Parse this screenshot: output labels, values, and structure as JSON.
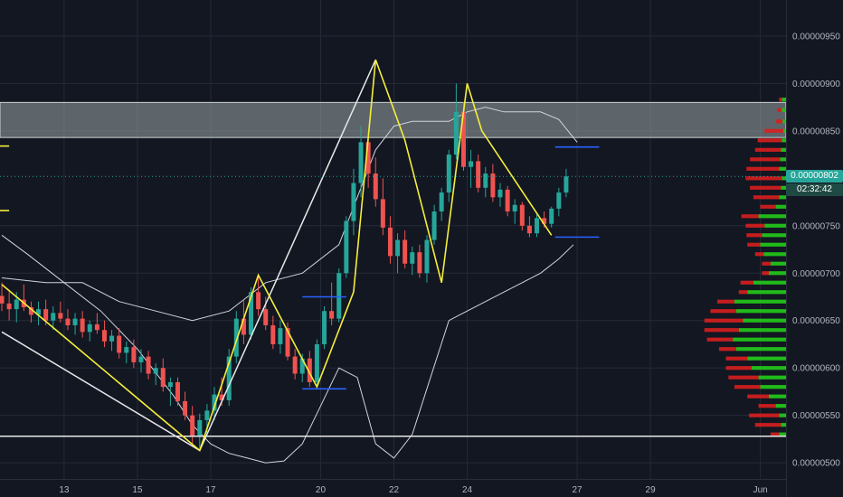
{
  "colors": {
    "background": "#131722",
    "grid": "#252a38",
    "axis_text": "#b2b5be",
    "candle_up": "#26a69a",
    "candle_down": "#ef5350",
    "yellow": "#f5ef3a",
    "white": "#e8e8e8",
    "band": "#d0d4dc",
    "zone": "#9ba6a6",
    "blue": "#2962ff",
    "last_price_tag": "#26a69a",
    "countdown_tag": "#1f4a44",
    "profile_up": "#22c31a",
    "profile_down": "#d91e1e"
  },
  "chart_data": {
    "type": "candlestick",
    "instrument_quote_unit": "price",
    "y_axis": {
      "ticks": [
        "0.00000950",
        "0.00000900",
        "0.00000850",
        "0.00000750",
        "0.00000700",
        "0.00000650",
        "0.00000600",
        "0.00000550",
        "0.00000500"
      ],
      "tick_values": [
        9.5e-06,
        9e-06,
        8.5e-06,
        7.5e-06,
        7e-06,
        6.5e-06,
        6e-06,
        5.5e-06,
        5e-06
      ],
      "range": [
        4.83e-06,
        9.88e-06
      ],
      "last_price_label": "0.00000802",
      "last_price": 8.02e-06,
      "countdown_label": "02:32:42"
    },
    "x_axis": {
      "ticks": [
        "13",
        "15",
        "17",
        "20",
        "22",
        "24",
        "27",
        "29",
        "Jun"
      ],
      "tick_days": [
        13,
        15,
        17,
        20,
        22,
        24,
        27,
        29,
        32
      ],
      "range_days": [
        11.25,
        32.7
      ]
    },
    "resistance_zone": [
      8.43e-06,
      8.8e-06
    ],
    "support_line": 5.28e-06,
    "candles": [
      [
        11.3,
        6.76e-06,
        6.9e-06,
        6.6e-06,
        6.68e-06
      ],
      [
        11.5,
        6.68e-06,
        6.8e-06,
        6.5e-06,
        6.62e-06
      ],
      [
        11.7,
        6.62e-06,
        6.8e-06,
        6.48e-06,
        6.72e-06
      ],
      [
        11.9,
        6.72e-06,
        6.88e-06,
        6.6e-06,
        6.64e-06
      ],
      [
        12.1,
        6.64e-06,
        6.7e-06,
        6.48e-06,
        6.56e-06
      ],
      [
        12.3,
        6.56e-06,
        6.7e-06,
        6.45e-06,
        6.62e-06
      ],
      [
        12.5,
        6.62e-06,
        6.72e-06,
        6.45e-06,
        6.5e-06
      ],
      [
        12.7,
        6.5e-06,
        6.65e-06,
        6.4e-06,
        6.58e-06
      ],
      [
        12.9,
        6.58e-06,
        6.7e-06,
        6.48e-06,
        6.52e-06
      ],
      [
        13.1,
        6.52e-06,
        6.62e-06,
        6.4e-06,
        6.45e-06
      ],
      [
        13.3,
        6.45e-06,
        6.58e-06,
        6.35e-06,
        6.52e-06
      ],
      [
        13.5,
        6.52e-06,
        6.6e-06,
        6.32e-06,
        6.38e-06
      ],
      [
        13.7,
        6.38e-06,
        6.5e-06,
        6.28e-06,
        6.46e-06
      ],
      [
        13.9,
        6.46e-06,
        6.58e-06,
        6.36e-06,
        6.4e-06
      ],
      [
        14.1,
        6.4e-06,
        6.5e-06,
        6.22e-06,
        6.28e-06
      ],
      [
        14.3,
        6.28e-06,
        6.4e-06,
        6.18e-06,
        6.34e-06
      ],
      [
        14.5,
        6.34e-06,
        6.42e-06,
        6.1e-06,
        6.16e-06
      ],
      [
        14.7,
        6.16e-06,
        6.28e-06,
        6.05e-06,
        6.22e-06
      ],
      [
        14.9,
        6.22e-06,
        6.3e-06,
        6e-06,
        6.06e-06
      ],
      [
        15.1,
        6.06e-06,
        6.2e-06,
        5.95e-06,
        6.12e-06
      ],
      [
        15.3,
        6.12e-06,
        6.18e-06,
        5.88e-06,
        5.94e-06
      ],
      [
        15.5,
        5.94e-06,
        6.05e-06,
        5.82e-06,
        6e-06
      ],
      [
        15.7,
        6e-06,
        6.1e-06,
        5.75e-06,
        5.8e-06
      ],
      [
        15.9,
        5.8e-06,
        5.9e-06,
        5.6e-06,
        5.85e-06
      ],
      [
        16.1,
        5.85e-06,
        5.9e-06,
        5.6e-06,
        5.65e-06
      ],
      [
        16.3,
        5.65e-06,
        5.75e-06,
        5.45e-06,
        5.5e-06
      ],
      [
        16.5,
        5.5e-06,
        5.6e-06,
        5.2e-06,
        5.28e-06
      ],
      [
        16.7,
        5.28e-06,
        5.52e-06,
        5.13e-06,
        5.45e-06
      ],
      [
        16.9,
        5.45e-06,
        5.62e-06,
        5.3e-06,
        5.55e-06
      ],
      [
        17.1,
        5.55e-06,
        5.8e-06,
        5.45e-06,
        5.72e-06
      ],
      [
        17.3,
        5.72e-06,
        5.9e-06,
        5.6e-06,
        5.66e-06
      ],
      [
        17.5,
        5.66e-06,
        6.2e-06,
        5.6e-06,
        6.12e-06
      ],
      [
        17.7,
        6.12e-06,
        6.6e-06,
        6.05e-06,
        6.52e-06
      ],
      [
        17.9,
        6.52e-06,
        6.72e-06,
        6.25e-06,
        6.35e-06
      ],
      [
        18.1,
        6.35e-06,
        6.85e-06,
        6.3e-06,
        6.8e-06
      ],
      [
        18.3,
        6.8e-06,
        6.98e-06,
        6.55e-06,
        6.62e-06
      ],
      [
        18.5,
        6.62e-06,
        6.75e-06,
        6.4e-06,
        6.45e-06
      ],
      [
        18.7,
        6.45e-06,
        6.55e-06,
        6.2e-06,
        6.25e-06
      ],
      [
        18.9,
        6.25e-06,
        6.5e-06,
        6.15e-06,
        6.42e-06
      ],
      [
        19.1,
        6.42e-06,
        6.48e-06,
        6.08e-06,
        6.12e-06
      ],
      [
        19.3,
        6.12e-06,
        6.2e-06,
        5.88e-06,
        5.94e-06
      ],
      [
        19.5,
        5.94e-06,
        6.15e-06,
        5.85e-06,
        6.1e-06
      ],
      [
        19.7,
        6.1e-06,
        6.18e-06,
        5.8e-06,
        5.85e-06
      ],
      [
        19.9,
        5.85e-06,
        6.3e-06,
        5.8e-06,
        6.25e-06
      ],
      [
        20.1,
        6.25e-06,
        6.65e-06,
        6.2e-06,
        6.6e-06
      ],
      [
        20.3,
        6.6e-06,
        6.9e-06,
        6.45e-06,
        6.52e-06
      ],
      [
        20.5,
        6.52e-06,
        7.05e-06,
        6.48e-06,
        7e-06
      ],
      [
        20.7,
        7e-06,
        7.6e-06,
        6.95e-06,
        7.55e-06
      ],
      [
        20.9,
        7.55e-06,
        8.1e-06,
        7.4e-06,
        7.95e-06
      ],
      [
        21.1,
        7.95e-06,
        8.55e-06,
        7.8e-06,
        8.38e-06
      ],
      [
        21.3,
        8.38e-06,
        8.5e-06,
        7.9e-06,
        8.05e-06
      ],
      [
        21.5,
        8.05e-06,
        8.22e-06,
        7.7e-06,
        7.78e-06
      ],
      [
        21.7,
        7.78e-06,
        8e-06,
        7.4e-06,
        7.48e-06
      ],
      [
        21.9,
        7.48e-06,
        7.6e-06,
        7.1e-06,
        7.18e-06
      ],
      [
        22.1,
        7.18e-06,
        7.42e-06,
        7e-06,
        7.35e-06
      ],
      [
        22.3,
        7.35e-06,
        7.45e-06,
        7.05e-06,
        7.1e-06
      ],
      [
        22.5,
        7.1e-06,
        7.28e-06,
        6.98e-06,
        7.22e-06
      ],
      [
        22.7,
        7.22e-06,
        7.3e-06,
        6.95e-06,
        7e-06
      ],
      [
        22.9,
        7e-06,
        7.4e-06,
        6.9e-06,
        7.35e-06
      ],
      [
        23.1,
        7.35e-06,
        7.72e-06,
        7.3e-06,
        7.65e-06
      ],
      [
        23.3,
        7.65e-06,
        7.9e-06,
        7.55e-06,
        7.85e-06
      ],
      [
        23.5,
        7.85e-06,
        8.3e-06,
        7.75e-06,
        8.25e-06
      ],
      [
        23.7,
        8.25e-06,
        9e-06,
        8.2e-06,
        8.7e-06
      ],
      [
        23.9,
        8.7e-06,
        8.8e-06,
        8.08e-06,
        8.12e-06
      ],
      [
        24.1,
        8.12e-06,
        8.3e-06,
        7.9e-06,
        8.18e-06
      ],
      [
        24.3,
        8.18e-06,
        8.25e-06,
        7.85e-06,
        7.9e-06
      ],
      [
        24.5,
        7.9e-06,
        8.12e-06,
        7.8e-06,
        8.05e-06
      ],
      [
        24.7,
        8.05e-06,
        8.15e-06,
        7.75e-06,
        7.8e-06
      ],
      [
        24.9,
        7.8e-06,
        7.95e-06,
        7.7e-06,
        7.88e-06
      ],
      [
        25.1,
        7.88e-06,
        7.92e-06,
        7.6e-06,
        7.65e-06
      ],
      [
        25.3,
        7.65e-06,
        7.78e-06,
        7.52e-06,
        7.72e-06
      ],
      [
        25.5,
        7.72e-06,
        7.75e-06,
        7.45e-06,
        7.5e-06
      ],
      [
        25.7,
        7.5e-06,
        7.6e-06,
        7.38e-06,
        7.42e-06
      ],
      [
        25.9,
        7.42e-06,
        7.62e-06,
        7.38e-06,
        7.58e-06
      ],
      [
        26.1,
        7.58e-06,
        7.65e-06,
        7.48e-06,
        7.52e-06
      ],
      [
        26.3,
        7.52e-06,
        7.7e-06,
        7.48e-06,
        7.68e-06
      ],
      [
        26.5,
        7.68e-06,
        7.9e-06,
        7.6e-06,
        7.85e-06
      ],
      [
        26.7,
        7.85e-06,
        8.1e-06,
        7.8e-06,
        8.02e-06
      ]
    ],
    "bollinger_upper": [
      [
        11.3,
        6.95e-06
      ],
      [
        12.5,
        6.9e-06
      ],
      [
        13.5,
        6.9e-06
      ],
      [
        14.5,
        6.7e-06
      ],
      [
        15.5,
        6.6e-06
      ],
      [
        16.5,
        6.5e-06
      ],
      [
        17.5,
        6.6e-06
      ],
      [
        18.5,
        6.9e-06
      ],
      [
        19.5,
        7e-06
      ],
      [
        20.5,
        7.3e-06
      ],
      [
        21.0,
        7.8e-06
      ],
      [
        21.5,
        8.3e-06
      ],
      [
        22.0,
        8.55e-06
      ],
      [
        22.5,
        8.6e-06
      ],
      [
        23.5,
        8.6e-06
      ],
      [
        24.0,
        8.7e-06
      ],
      [
        24.5,
        8.75e-06
      ],
      [
        25.0,
        8.7e-06
      ],
      [
        25.5,
        8.7e-06
      ],
      [
        26.0,
        8.7e-06
      ],
      [
        26.5,
        8.62e-06
      ],
      [
        27.0,
        8.38e-06
      ]
    ],
    "bollinger_lower": [
      [
        11.3,
        7.4e-06
      ],
      [
        12.0,
        7.2e-06
      ],
      [
        13.0,
        6.9e-06
      ],
      [
        14.0,
        6.6e-06
      ],
      [
        15.0,
        6.2e-06
      ],
      [
        16.0,
        5.7e-06
      ],
      [
        16.5,
        5.4e-06
      ],
      [
        17.0,
        5.2e-06
      ],
      [
        17.5,
        5.1e-06
      ],
      [
        18.0,
        5.05e-06
      ],
      [
        18.5,
        5e-06
      ],
      [
        19.0,
        5.02e-06
      ],
      [
        19.5,
        5.2e-06
      ],
      [
        20.0,
        5.6e-06
      ],
      [
        20.5,
        6e-06
      ],
      [
        21.0,
        5.9e-06
      ],
      [
        21.5,
        5.2e-06
      ],
      [
        22.0,
        5.05e-06
      ],
      [
        22.5,
        5.3e-06
      ],
      [
        23.0,
        5.9e-06
      ],
      [
        23.5,
        6.5e-06
      ],
      [
        24.0,
        6.6e-06
      ],
      [
        24.5,
        6.7e-06
      ],
      [
        25.0,
        6.8e-06
      ],
      [
        25.5,
        6.9e-06
      ],
      [
        26.0,
        7e-06
      ],
      [
        26.5,
        7.15e-06
      ],
      [
        26.9,
        7.3e-06
      ]
    ],
    "yellow_zigzag": [
      [
        11.3,
        6.88e-06
      ],
      [
        16.7,
        5.13e-06
      ],
      [
        18.3,
        6.98e-06
      ],
      [
        19.9,
        5.8e-06
      ],
      [
        20.9,
        6.8e-06
      ],
      [
        21.5,
        9.25e-06
      ],
      [
        22.3,
        8.4e-06
      ],
      [
        23.3,
        6.9e-06
      ],
      [
        24.0,
        9e-06
      ],
      [
        24.4,
        8.5e-06
      ],
      [
        26.3,
        7.4e-06
      ]
    ],
    "white_lines": [
      [
        [
          11.3,
          6.38e-06
        ],
        [
          16.7,
          5.13e-06
        ],
        [
          21.5,
          9.25e-06
        ]
      ]
    ],
    "blue_levels": [
      [
        19.5,
        20.7,
        6.75e-06
      ],
      [
        19.5,
        20.7,
        5.78e-06
      ],
      [
        26.4,
        27.6,
        8.33e-06
      ],
      [
        26.4,
        27.6,
        7.38e-06
      ]
    ],
    "left_markers": [
      [
        11.25,
        11.5,
        8.34e-06
      ],
      [
        11.25,
        11.5,
        7.66e-06
      ]
    ],
    "volume_profile": [
      [
        8.83e-06,
        0.05,
        0.03
      ],
      [
        8.72e-06,
        0.05,
        0.05
      ],
      [
        8.6e-06,
        0.04,
        0.08
      ],
      [
        8.5e-06,
        0.03,
        0.22
      ],
      [
        8.4e-06,
        0.05,
        0.28
      ],
      [
        8.3e-06,
        0.06,
        0.3
      ],
      [
        8.2e-06,
        0.07,
        0.35
      ],
      [
        8.1e-06,
        0.08,
        0.38
      ],
      [
        8e-06,
        0.05,
        0.42
      ],
      [
        7.9e-06,
        0.06,
        0.36
      ],
      [
        7.8e-06,
        0.08,
        0.3
      ],
      [
        7.7e-06,
        0.12,
        0.18
      ],
      [
        7.6e-06,
        0.32,
        0.2
      ],
      [
        7.5e-06,
        0.25,
        0.22
      ],
      [
        7.4e-06,
        0.28,
        0.18
      ],
      [
        7.3e-06,
        0.3,
        0.15
      ],
      [
        7.2e-06,
        0.26,
        0.1
      ],
      [
        7.1e-06,
        0.18,
        0.1
      ],
      [
        7e-06,
        0.2,
        0.08
      ],
      [
        6.9e-06,
        0.38,
        0.15
      ],
      [
        6.8e-06,
        0.45,
        0.1
      ],
      [
        6.7e-06,
        0.6,
        0.2
      ],
      [
        6.6e-06,
        0.58,
        0.3
      ],
      [
        6.5e-06,
        0.5,
        0.45
      ],
      [
        6.4e-06,
        0.55,
        0.4
      ],
      [
        6.3e-06,
        0.62,
        0.3
      ],
      [
        6.2e-06,
        0.58,
        0.2
      ],
      [
        6.1e-06,
        0.45,
        0.25
      ],
      [
        6e-06,
        0.4,
        0.3
      ],
      [
        5.9e-06,
        0.32,
        0.35
      ],
      [
        5.8e-06,
        0.3,
        0.3
      ],
      [
        5.7e-06,
        0.2,
        0.25
      ],
      [
        5.6e-06,
        0.12,
        0.2
      ],
      [
        5.5e-06,
        0.08,
        0.35
      ],
      [
        5.4e-06,
        0.06,
        0.3
      ],
      [
        5.3e-06,
        0.08,
        0.1
      ]
    ]
  }
}
